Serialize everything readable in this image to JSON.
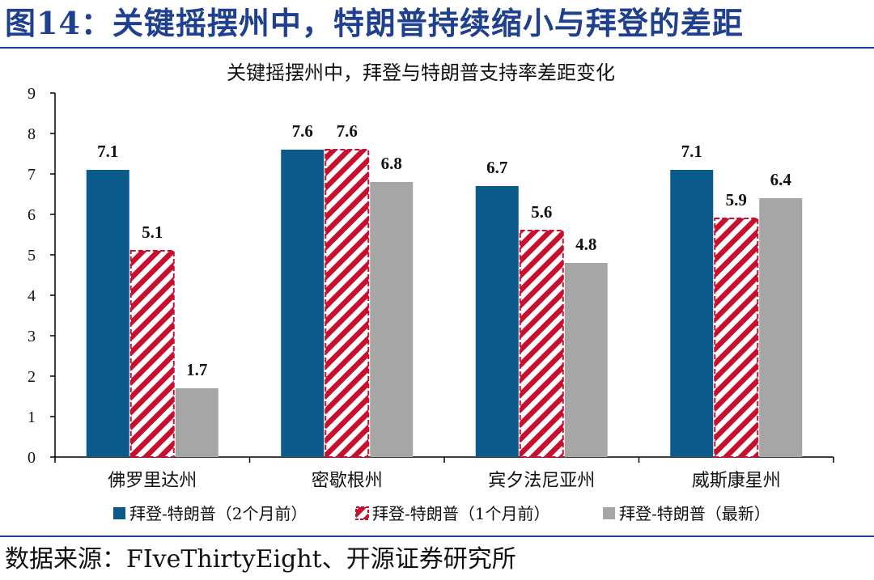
{
  "figure_title": "图14：关键摇摆州中，特朗普持续缩小与拜登的差距",
  "source_text": "数据来源：FIveThirtyEight、开源证券研究所",
  "colors": {
    "title": "#1f3f8f",
    "series_1": "#0b5a8c",
    "series_2_stripe": "#c8102e",
    "series_3": "#a6a6a6",
    "axis": "#000000"
  },
  "chart_data": {
    "type": "bar",
    "title": "关键摇摆州中，拜登与特朗普支持率差距变化",
    "categories": [
      "佛罗里达州",
      "密歇根州",
      "宾夕法尼亚州",
      "威斯康星州"
    ],
    "series": [
      {
        "name": "拜登-特朗普（2个月前）",
        "values": [
          7.1,
          7.6,
          6.7,
          7.1
        ],
        "pattern": "solid",
        "value_labels": [
          "7.1",
          "7.6",
          "6.7",
          "7.1"
        ]
      },
      {
        "name": "拜登-特朗普（1个月前）",
        "values": [
          5.1,
          7.6,
          5.6,
          5.9
        ],
        "pattern": "diagonal-stripes",
        "value_labels": [
          "5.1",
          "7.6",
          "5.6",
          "5.9"
        ]
      },
      {
        "name": "拜登-特朗普（最新）",
        "values": [
          1.7,
          6.8,
          4.8,
          6.4
        ],
        "pattern": "solid",
        "value_labels": [
          "1.7",
          "6.8",
          "4.8",
          "6.4"
        ]
      }
    ],
    "y_ticks": [
      "0",
      "1",
      "2",
      "3",
      "4",
      "5",
      "6",
      "7",
      "8",
      "9"
    ],
    "ylim": [
      0,
      9
    ],
    "grid": false,
    "legend_position": "bottom"
  }
}
